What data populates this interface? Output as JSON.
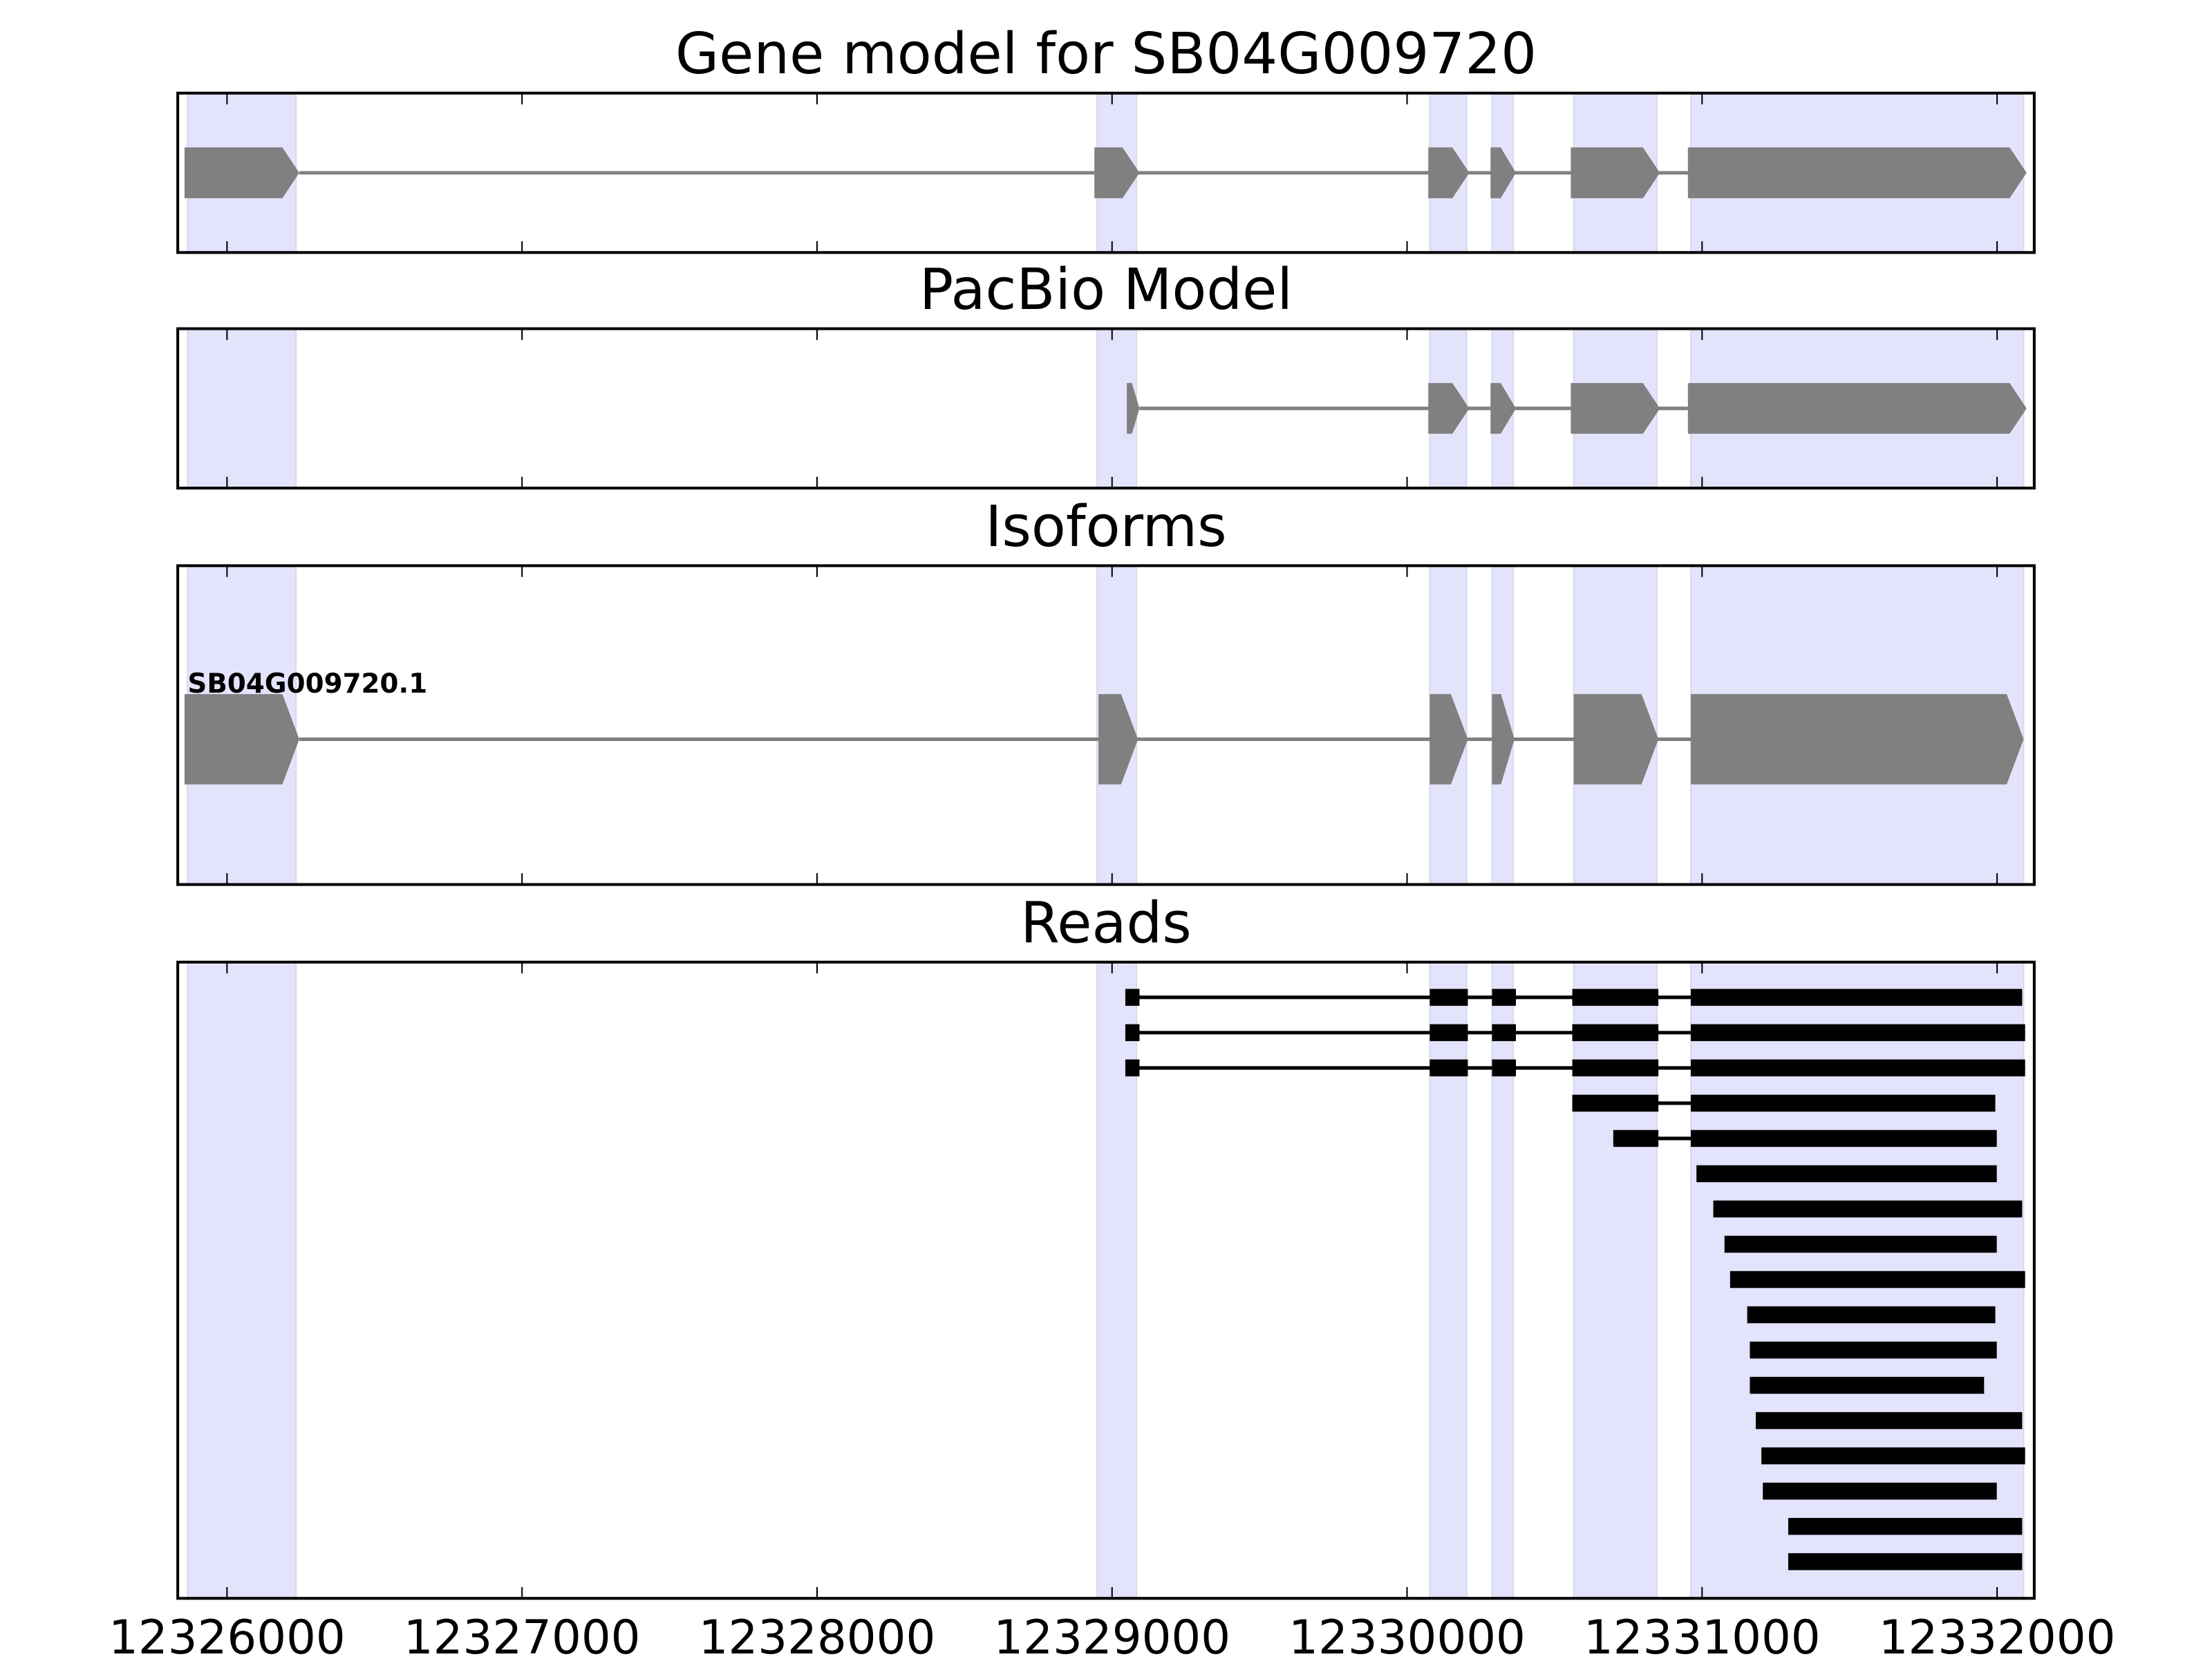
{
  "colors": {
    "exon_region": "#e3e3fb",
    "model": "#808080",
    "read": "#000000",
    "axis": "#000000"
  },
  "xaxis": {
    "min": 12325833,
    "max": 12332126,
    "ticks": [
      12326000,
      12327000,
      12328000,
      12329000,
      12330000,
      12331000,
      12332000
    ],
    "tick_labels": [
      "12326000",
      "12327000",
      "12328000",
      "12329000",
      "12330000",
      "12331000",
      "12332000"
    ]
  },
  "exon_regions": [
    [
      12325866,
      12326234
    ],
    [
      12328949,
      12329083
    ],
    [
      12330077,
      12330202
    ],
    [
      12330288,
      12330360
    ],
    [
      12330565,
      12330847
    ],
    [
      12330962,
      12332090
    ]
  ],
  "panels": [
    {
      "title": "Gene model for SB04G009720",
      "type": "model",
      "exons": [
        [
          12325856,
          12326245
        ],
        [
          12328940,
          12329093
        ],
        [
          12330072,
          12330211
        ],
        [
          12330283,
          12330369
        ],
        [
          12330555,
          12330857
        ],
        [
          12330952,
          12332100
        ]
      ]
    },
    {
      "title": "PacBio Model",
      "type": "model",
      "exons": [
        [
          12329050,
          12329093
        ],
        [
          12330072,
          12330211
        ],
        [
          12330283,
          12330369
        ],
        [
          12330555,
          12330857
        ],
        [
          12330952,
          12332100
        ]
      ]
    },
    {
      "title": "Isoforms",
      "type": "isoform",
      "label": "SB04G009720.1",
      "exons": [
        [
          12325856,
          12326245
        ],
        [
          12328954,
          12329088
        ],
        [
          12330077,
          12330206
        ],
        [
          12330288,
          12330364
        ],
        [
          12330565,
          12330852
        ],
        [
          12330962,
          12332090
        ]
      ]
    },
    {
      "title": "Reads",
      "type": "reads",
      "reads": [
        [
          [
            12329045,
            12329093
          ],
          [
            12330077,
            12330206
          ],
          [
            12330288,
            12330369
          ],
          [
            12330560,
            12330852
          ],
          [
            12330962,
            12332085
          ]
        ],
        [
          [
            12329045,
            12329093
          ],
          [
            12330077,
            12330206
          ],
          [
            12330288,
            12330369
          ],
          [
            12330560,
            12330852
          ],
          [
            12330962,
            12332095
          ]
        ],
        [
          [
            12329045,
            12329093
          ],
          [
            12330077,
            12330206
          ],
          [
            12330288,
            12330369
          ],
          [
            12330560,
            12330852
          ],
          [
            12330962,
            12332095
          ]
        ],
        [
          [
            12330560,
            12330852
          ],
          [
            12330962,
            12331994
          ]
        ],
        [
          [
            12330699,
            12330852
          ],
          [
            12330962,
            12331999
          ]
        ],
        [
          [
            12330981,
            12331999
          ]
        ],
        [
          [
            12331038,
            12332085
          ]
        ],
        [
          [
            12331076,
            12331999
          ]
        ],
        [
          [
            12331095,
            12332095
          ]
        ],
        [
          [
            12331153,
            12331994
          ]
        ],
        [
          [
            12331162,
            12331999
          ]
        ],
        [
          [
            12331162,
            12331956
          ]
        ],
        [
          [
            12331182,
            12332085
          ]
        ],
        [
          [
            12331201,
            12332095
          ]
        ],
        [
          [
            12331206,
            12331999
          ]
        ],
        [
          [
            12331292,
            12332085
          ]
        ],
        [
          [
            12331292,
            12332085
          ]
        ]
      ]
    }
  ]
}
